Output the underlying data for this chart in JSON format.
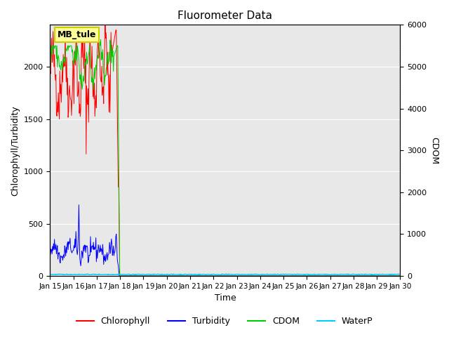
{
  "title": "Fluorometer Data",
  "xlabel": "Time",
  "ylabel_left": "Chlorophyll/Turbidity",
  "ylabel_right": "CDOM",
  "annotation": "MB_tule",
  "ylim_left": [
    0,
    2400
  ],
  "ylim_right": [
    0,
    6000
  ],
  "xtick_labels": [
    "Jan 15",
    "Jan 16",
    "Jan 17",
    "Jan 18",
    "Jan 19",
    "Jan 20",
    "Jan 21",
    "Jan 22",
    "Jan 23",
    "Jan 24",
    "Jan 25",
    "Jan 26",
    "Jan 27",
    "Jan 28",
    "Jan 29",
    "Jan 30"
  ],
  "colors": {
    "chlorophyll": "#ff0000",
    "turbidity": "#0000ff",
    "cdom": "#00cc00",
    "waterp": "#00ccff",
    "background": "#e8e8e8",
    "annotation_bg": "#ffff99",
    "annotation_border": "#cccc00"
  },
  "legend_entries": [
    "Chlorophyll",
    "Turbidity",
    "CDOM",
    "WaterP"
  ]
}
